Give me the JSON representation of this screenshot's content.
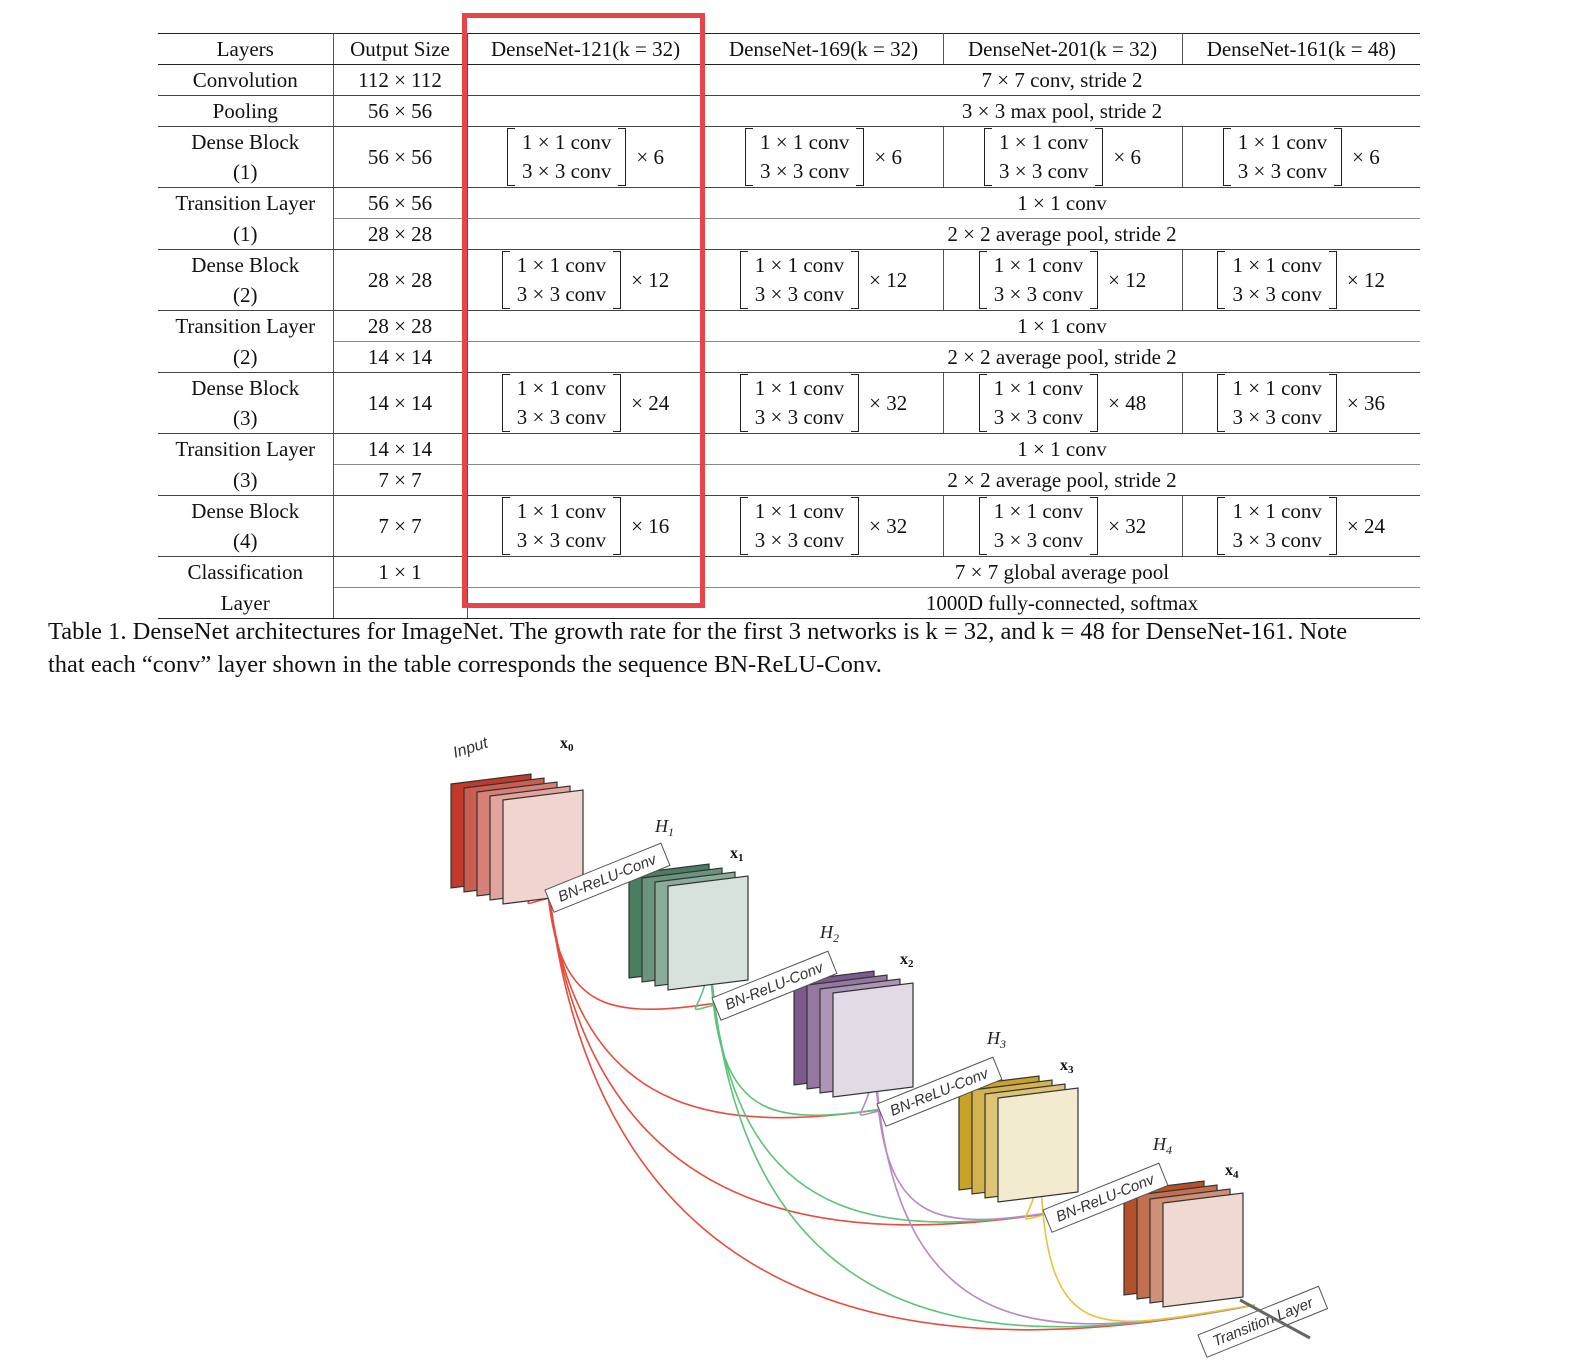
{
  "table": {
    "headers": [
      "Layers",
      "Output Size",
      "DenseNet-121(k = 32)",
      "DenseNet-169(k = 32)",
      "DenseNet-201(k = 32)",
      "DenseNet-161(k = 48)"
    ],
    "conv_line_1": "1 × 1 conv",
    "conv_line_2": "3 × 3 conv",
    "rows": {
      "convolution": {
        "label": "Convolution",
        "size": "112 × 112",
        "op": "7 × 7 conv, stride 2"
      },
      "pooling": {
        "label": "Pooling",
        "size": "56 × 56",
        "op": "3 × 3 max pool, stride 2"
      },
      "db1": {
        "label1": "Dense Block",
        "label2": "(1)",
        "size": "56 × 56",
        "m121": "× 6",
        "m169": "× 6",
        "m201": "× 6",
        "m161": "× 6"
      },
      "tl1": {
        "label1": "Transition Layer",
        "label2": "(1)",
        "size1": "56 × 56",
        "op1": "1 × 1 conv",
        "size2": "28 × 28",
        "op2": "2 × 2 average pool, stride 2"
      },
      "db2": {
        "label1": "Dense Block",
        "label2": "(2)",
        "size": "28 × 28",
        "m121": "× 12",
        "m169": "× 12",
        "m201": "× 12",
        "m161": "× 12"
      },
      "tl2": {
        "label1": "Transition Layer",
        "label2": "(2)",
        "size1": "28 × 28",
        "op1": "1 × 1 conv",
        "size2": "14 × 14",
        "op2": "2 × 2 average pool, stride 2"
      },
      "db3": {
        "label1": "Dense Block",
        "label2": "(3)",
        "size": "14 × 14",
        "m121": "× 24",
        "m169": "× 32",
        "m201": "× 48",
        "m161": "× 36"
      },
      "tl3": {
        "label1": "Transition Layer",
        "label2": "(3)",
        "size1": "14 × 14",
        "op1": "1 × 1 conv",
        "size2": "7 × 7",
        "op2": "2 × 2 average pool, stride 2"
      },
      "db4": {
        "label1": "Dense Block",
        "label2": "(4)",
        "size": "7 × 7",
        "m121": "× 16",
        "m169": "× 32",
        "m201": "× 32",
        "m161": "× 24"
      },
      "cls": {
        "label1": "Classification",
        "label2": "Layer",
        "size1": "1 × 1",
        "op1": "7 × 7 global average pool",
        "op2": "1000D fully-connected, softmax"
      }
    }
  },
  "caption": {
    "line1": "Table 1. DenseNet architectures for ImageNet. The growth rate for the first 3 networks is k = 32, and k = 48 for DenseNet-161. Note",
    "line2": "that each “conv” layer shown in the table corresponds the sequence BN-ReLU-Conv."
  },
  "figure": {
    "input_label": "Input",
    "x_labels": [
      "x0",
      "x1",
      "x2",
      "x3",
      "x4"
    ],
    "h_labels": [
      "H1",
      "H2",
      "H3",
      "H4"
    ],
    "op_label": "BN-ReLU-Conv",
    "transition_label": "Transition Layer",
    "colors": {
      "block0": "#c0392b",
      "block1": "#4a7d62",
      "block2": "#7d5a8e",
      "block3": "#c9a227",
      "block4": "#b5512a",
      "highlight": "#e8454b"
    }
  }
}
